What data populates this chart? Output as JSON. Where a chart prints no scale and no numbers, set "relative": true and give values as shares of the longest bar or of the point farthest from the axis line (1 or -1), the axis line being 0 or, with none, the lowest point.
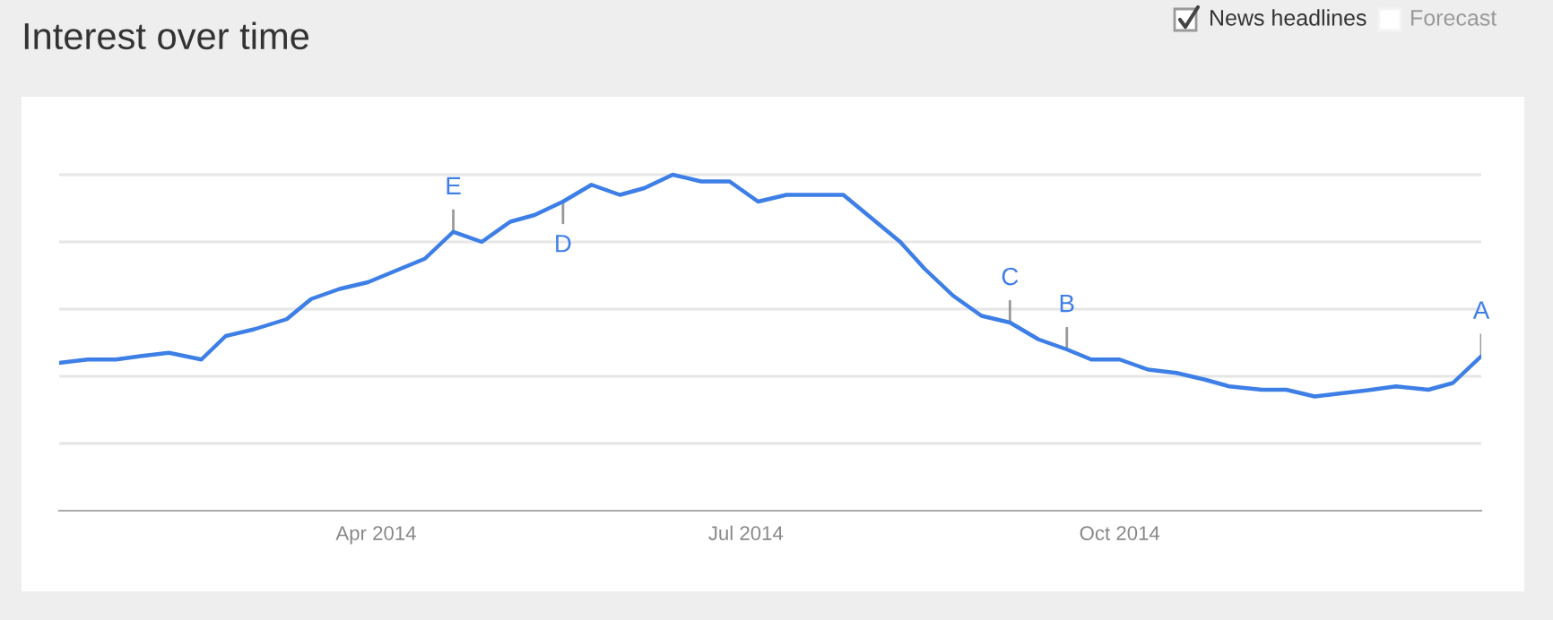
{
  "chart_data": {
    "type": "line",
    "title": "Interest over time",
    "relative": true,
    "grid": "y",
    "marker": "none",
    "line_style": "solid",
    "legend": false,
    "x": [
      "2014-01-13",
      "2014-01-20",
      "2014-01-27",
      "2014-02-02",
      "2014-02-09",
      "2014-02-17",
      "2014-02-23",
      "2014-03-02",
      "2014-03-10",
      "2014-03-16",
      "2014-03-23",
      "2014-03-30",
      "2014-04-05",
      "2014-04-13",
      "2014-04-20",
      "2014-04-27",
      "2014-05-04",
      "2014-05-10",
      "2014-05-17",
      "2014-05-24",
      "2014-05-31",
      "2014-06-06",
      "2014-06-13",
      "2014-06-20",
      "2014-06-27",
      "2014-07-04",
      "2014-07-11",
      "2014-07-18",
      "2014-07-25",
      "2014-08-01",
      "2014-08-08",
      "2014-08-14",
      "2014-08-21",
      "2014-08-28",
      "2014-09-04",
      "2014-09-11",
      "2014-09-18",
      "2014-09-24",
      "2014-10-01",
      "2014-10-08",
      "2014-10-15",
      "2014-10-22",
      "2014-10-28",
      "2014-11-05",
      "2014-11-11",
      "2014-11-18",
      "2014-11-25",
      "2014-12-02",
      "2014-12-08",
      "2014-12-16",
      "2014-12-22",
      "2014-12-29"
    ],
    "series": [
      {
        "color": "#3d7fe6",
        "values": [
          0.44,
          0.45,
          0.45,
          0.46,
          0.47,
          0.45,
          0.52,
          0.54,
          0.57,
          0.63,
          0.66,
          0.68,
          0.71,
          0.75,
          0.83,
          0.8,
          0.86,
          0.88,
          0.92,
          0.97,
          0.94,
          0.96,
          1,
          0.98,
          0.98,
          0.92,
          0.94,
          0.94,
          0.94,
          0.87,
          0.8,
          0.72,
          0.64,
          0.58,
          0.56,
          0.51,
          0.48,
          0.45,
          0.45,
          0.42,
          0.41,
          0.39,
          0.37,
          0.36,
          0.36,
          0.34,
          0.35,
          0.36,
          0.37,
          0.36,
          0.38,
          0.46
        ]
      }
    ],
    "xlim": [
      "2014-01-13",
      "2014-12-29"
    ],
    "xticks": [
      {
        "value": "2014-04-01",
        "label": "Apr 2014"
      },
      {
        "value": "2014-07-01",
        "label": "Jul 2014"
      },
      {
        "value": "2014-10-01",
        "label": "Oct 2014"
      }
    ],
    "annotations": [
      {
        "text": "E",
        "x": "2014-04-20",
        "y": 0.83
      },
      {
        "text": "D",
        "x": "2014-05-17",
        "y": 0.92
      },
      {
        "text": "C",
        "x": "2014-09-04",
        "y": 0.56
      },
      {
        "text": "B",
        "x": "2014-09-18",
        "y": 0.48
      },
      {
        "text": "A",
        "x": "2014-12-29",
        "y": 0.46
      },
      "News headlines",
      "Forecast"
    ]
  }
}
